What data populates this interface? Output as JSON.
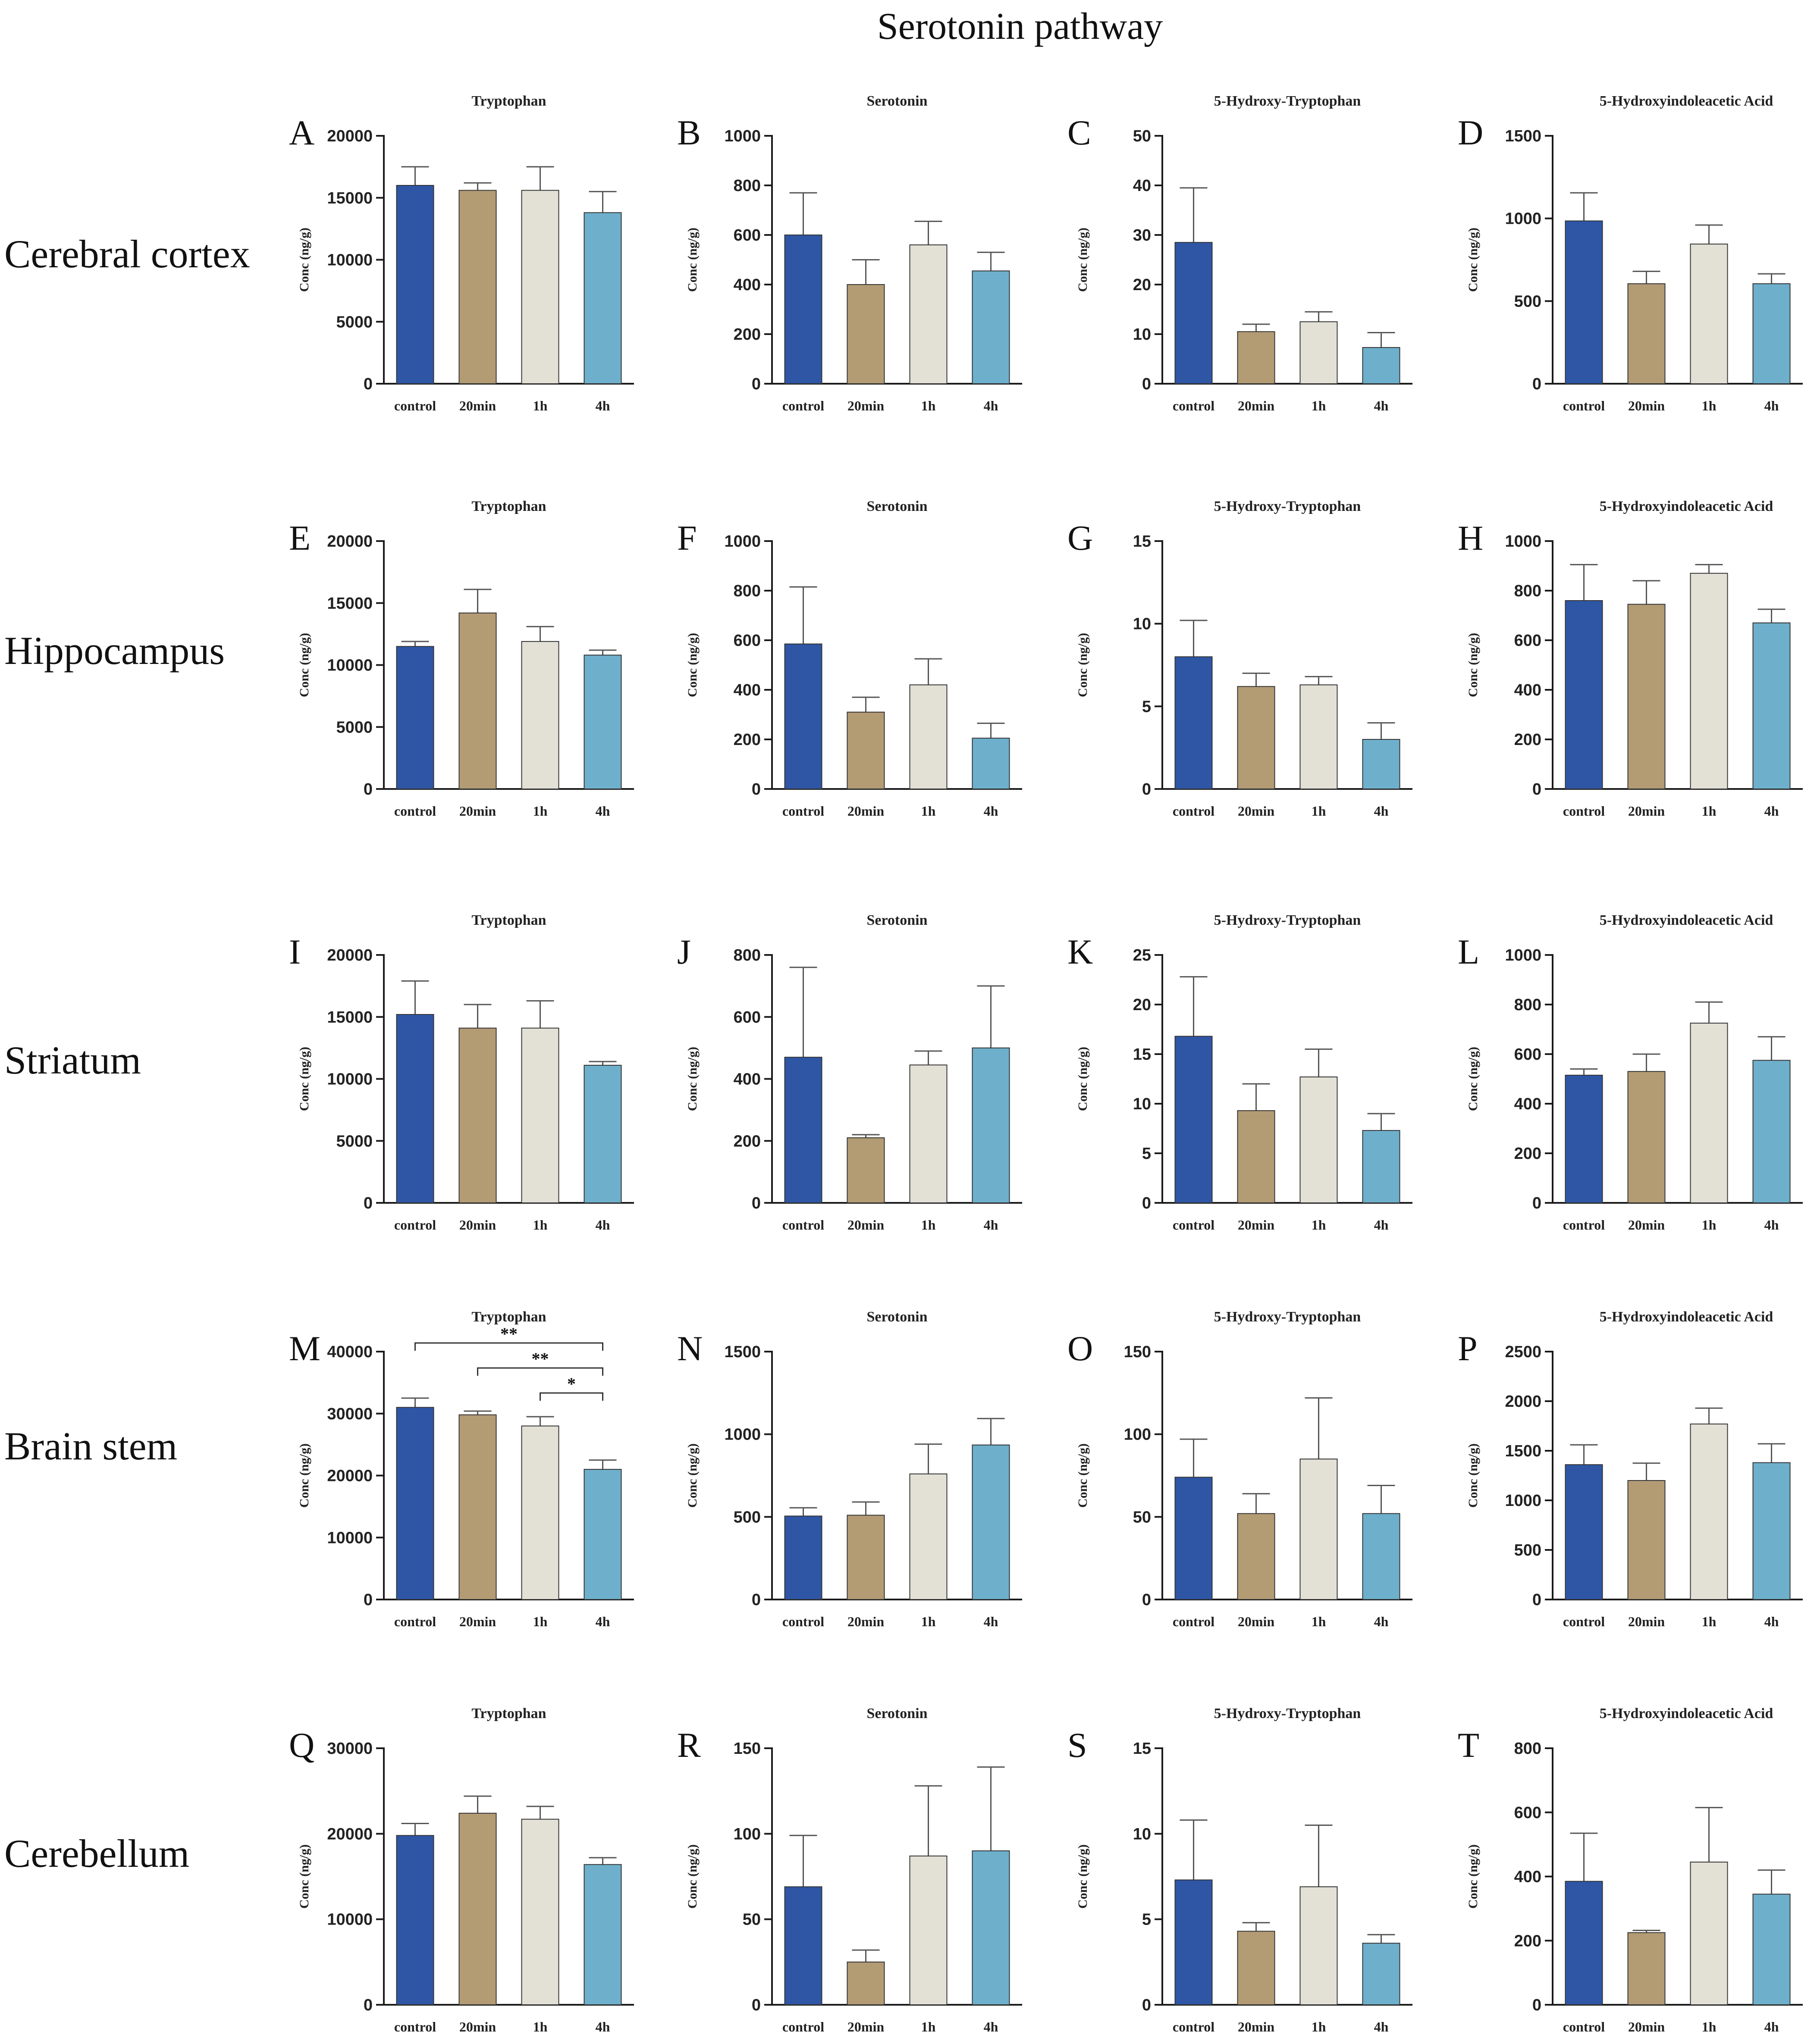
{
  "title": "Serotonin pathway",
  "colors": {
    "bars": [
      "#2e56a5",
      "#b39b74",
      "#e3e0d6",
      "#6eb0cc"
    ],
    "axis": "#1a1a1a",
    "error": "#555555"
  },
  "rows": [
    {
      "label": "Cerebral cortex"
    },
    {
      "label": "Hippocampus"
    },
    {
      "label": "Striatum"
    },
    {
      "label": "Brain stem"
    },
    {
      "label": "Cerebellum"
    }
  ],
  "chart_data": [
    {
      "type": "bar",
      "panel": "A",
      "region": "Cerebral cortex",
      "title": "Tryptophan",
      "ylabel": "Conc (ng/g)",
      "categories": [
        "control",
        "20min",
        "1h",
        "4h"
      ],
      "values": [
        16000,
        15600,
        15600,
        13800
      ],
      "errors": [
        1500,
        600,
        1900,
        1700
      ],
      "ylim": [
        0,
        20000
      ],
      "yticks": [
        0,
        5000,
        10000,
        15000,
        20000
      ]
    },
    {
      "type": "bar",
      "panel": "B",
      "region": "Cerebral cortex",
      "title": "Serotonin",
      "ylabel": "Conc (ng/g)",
      "categories": [
        "control",
        "20min",
        "1h",
        "4h"
      ],
      "values": [
        600,
        400,
        560,
        455
      ],
      "errors": [
        170,
        100,
        95,
        75
      ],
      "ylim": [
        0,
        1000
      ],
      "yticks": [
        0,
        200,
        400,
        600,
        800,
        1000
      ]
    },
    {
      "type": "bar",
      "panel": "C",
      "region": "Cerebral cortex",
      "title": "5-Hydroxy-Tryptophan",
      "ylabel": "Conc (ng/g)",
      "categories": [
        "control",
        "20min",
        "1h",
        "4h"
      ],
      "values": [
        28.5,
        10.5,
        12.5,
        7.3
      ],
      "errors": [
        11,
        1.5,
        2,
        3
      ],
      "ylim": [
        0,
        50
      ],
      "yticks": [
        0,
        10,
        20,
        30,
        40,
        50
      ]
    },
    {
      "type": "bar",
      "panel": "D",
      "region": "Cerebral cortex",
      "title": "5-Hydroxyindoleacetic Acid",
      "ylabel": "Conc (ng/g)",
      "categories": [
        "control",
        "20min",
        "1h",
        "4h"
      ],
      "values": [
        985,
        605,
        845,
        605
      ],
      "errors": [
        170,
        75,
        115,
        60
      ],
      "ylim": [
        0,
        1500
      ],
      "yticks": [
        0,
        500,
        1000,
        1500
      ]
    },
    {
      "type": "bar",
      "panel": "E",
      "region": "Hippocampus",
      "title": "Tryptophan",
      "ylabel": "Conc (ng/g)",
      "categories": [
        "control",
        "20min",
        "1h",
        "4h"
      ],
      "values": [
        11500,
        14200,
        11900,
        10800
      ],
      "errors": [
        400,
        1900,
        1200,
        400
      ],
      "ylim": [
        0,
        20000
      ],
      "yticks": [
        0,
        5000,
        10000,
        15000,
        20000
      ]
    },
    {
      "type": "bar",
      "panel": "F",
      "region": "Hippocampus",
      "title": "Serotonin",
      "ylabel": "Conc (ng/g)",
      "categories": [
        "control",
        "20min",
        "1h",
        "4h"
      ],
      "values": [
        585,
        310,
        420,
        205
      ],
      "errors": [
        230,
        60,
        105,
        60
      ],
      "ylim": [
        0,
        1000
      ],
      "yticks": [
        0,
        200,
        400,
        600,
        800,
        1000
      ]
    },
    {
      "type": "bar",
      "panel": "G",
      "region": "Hippocampus",
      "title": "5-Hydroxy-Tryptophan",
      "ylabel": "Conc (ng/g)",
      "categories": [
        "control",
        "20min",
        "1h",
        "4h"
      ],
      "values": [
        8.0,
        6.2,
        6.3,
        3.0
      ],
      "errors": [
        2.2,
        0.8,
        0.5,
        1.0
      ],
      "ylim": [
        0,
        15
      ],
      "yticks": [
        0,
        5,
        10,
        15
      ]
    },
    {
      "type": "bar",
      "panel": "H",
      "region": "Hippocampus",
      "title": "5-Hydroxyindoleacetic Acid",
      "ylabel": "Conc (ng/g)",
      "categories": [
        "control",
        "20min",
        "1h",
        "4h"
      ],
      "values": [
        760,
        745,
        870,
        670
      ],
      "errors": [
        145,
        95,
        35,
        55
      ],
      "ylim": [
        0,
        1000
      ],
      "yticks": [
        0,
        200,
        400,
        600,
        800,
        1000
      ]
    },
    {
      "type": "bar",
      "panel": "I",
      "region": "Striatum",
      "title": "Tryptophan",
      "ylabel": "Conc (ng/g)",
      "categories": [
        "control",
        "20min",
        "1h",
        "4h"
      ],
      "values": [
        15200,
        14100,
        14100,
        11100
      ],
      "errors": [
        2700,
        1900,
        2200,
        300
      ],
      "ylim": [
        0,
        20000
      ],
      "yticks": [
        0,
        5000,
        10000,
        15000,
        20000
      ]
    },
    {
      "type": "bar",
      "panel": "J",
      "region": "Striatum",
      "title": "Serotonin",
      "ylabel": "Conc (ng/g)",
      "categories": [
        "control",
        "20min",
        "1h",
        "4h"
      ],
      "values": [
        470,
        210,
        445,
        500
      ],
      "errors": [
        290,
        10,
        45,
        200
      ],
      "ylim": [
        0,
        800
      ],
      "yticks": [
        0,
        200,
        400,
        600,
        800
      ]
    },
    {
      "type": "bar",
      "panel": "K",
      "region": "Striatum",
      "title": "5-Hydroxy-Tryptophan",
      "ylabel": "Conc (ng/g)",
      "categories": [
        "control",
        "20min",
        "1h",
        "4h"
      ],
      "values": [
        16.8,
        9.3,
        12.7,
        7.3
      ],
      "errors": [
        6,
        2.7,
        2.8,
        1.7
      ],
      "ylim": [
        0,
        25
      ],
      "yticks": [
        0,
        5,
        10,
        15,
        20,
        25
      ]
    },
    {
      "type": "bar",
      "panel": "L",
      "region": "Striatum",
      "title": "5-Hydroxyindoleacetic Acid",
      "ylabel": "Conc (ng/g)",
      "categories": [
        "control",
        "20min",
        "1h",
        "4h"
      ],
      "values": [
        515,
        530,
        725,
        575
      ],
      "errors": [
        25,
        70,
        85,
        95
      ],
      "ylim": [
        0,
        1000
      ],
      "yticks": [
        0,
        200,
        400,
        600,
        800,
        1000
      ]
    },
    {
      "type": "bar",
      "panel": "M",
      "region": "Brain stem",
      "title": "Tryptophan",
      "ylabel": "Conc (ng/g)",
      "categories": [
        "control",
        "20min",
        "1h",
        "4h"
      ],
      "values": [
        31000,
        29800,
        28000,
        21000
      ],
      "errors": [
        1500,
        600,
        1500,
        1500
      ],
      "ylim": [
        0,
        40000
      ],
      "yticks": [
        0,
        10000,
        20000,
        30000,
        40000
      ],
      "significance": [
        {
          "from": 0,
          "to": 3,
          "label": "**"
        },
        {
          "from": 1,
          "to": 3,
          "label": "**"
        },
        {
          "from": 2,
          "to": 3,
          "label": "*"
        }
      ]
    },
    {
      "type": "bar",
      "panel": "N",
      "region": "Brain stem",
      "title": "Serotonin",
      "ylabel": "Conc (ng/g)",
      "categories": [
        "control",
        "20min",
        "1h",
        "4h"
      ],
      "values": [
        505,
        510,
        760,
        935
      ],
      "errors": [
        50,
        80,
        180,
        160
      ],
      "ylim": [
        0,
        1500
      ],
      "yticks": [
        0,
        500,
        1000,
        1500
      ]
    },
    {
      "type": "bar",
      "panel": "O",
      "region": "Brain stem",
      "title": "5-Hydroxy-Tryptophan",
      "ylabel": "Conc (ng/g)",
      "categories": [
        "control",
        "20min",
        "1h",
        "4h"
      ],
      "values": [
        74,
        52,
        85,
        52
      ],
      "errors": [
        23,
        12,
        37,
        17
      ],
      "ylim": [
        0,
        150
      ],
      "yticks": [
        0,
        50,
        100,
        150
      ]
    },
    {
      "type": "bar",
      "panel": "P",
      "region": "Brain stem",
      "title": "5-Hydroxyindoleacetic Acid",
      "ylabel": "Conc (ng/g)",
      "categories": [
        "control",
        "20min",
        "1h",
        "4h"
      ],
      "values": [
        1360,
        1200,
        1770,
        1380
      ],
      "errors": [
        200,
        175,
        160,
        190
      ],
      "ylim": [
        0,
        2500
      ],
      "yticks": [
        0,
        500,
        1000,
        1500,
        2000,
        2500
      ]
    },
    {
      "type": "bar",
      "panel": "Q",
      "region": "Cerebellum",
      "title": "Tryptophan",
      "ylabel": "Conc (ng/g)",
      "categories": [
        "control",
        "20min",
        "1h",
        "4h"
      ],
      "values": [
        19800,
        22400,
        21700,
        16400
      ],
      "errors": [
        1400,
        2000,
        1500,
        800
      ],
      "ylim": [
        0,
        30000
      ],
      "yticks": [
        0,
        10000,
        20000,
        30000
      ]
    },
    {
      "type": "bar",
      "panel": "R",
      "region": "Cerebellum",
      "title": "Serotonin",
      "ylabel": "Conc (ng/g)",
      "categories": [
        "control",
        "20min",
        "1h",
        "4h"
      ],
      "values": [
        69,
        25,
        87,
        90
      ],
      "errors": [
        30,
        7,
        41,
        49
      ],
      "ylim": [
        0,
        150
      ],
      "yticks": [
        0,
        50,
        100,
        150
      ]
    },
    {
      "type": "bar",
      "panel": "S",
      "region": "Cerebellum",
      "title": "5-Hydroxy-Tryptophan",
      "ylabel": "Conc (ng/g)",
      "categories": [
        "control",
        "20min",
        "1h",
        "4h"
      ],
      "values": [
        7.3,
        4.3,
        6.9,
        3.6
      ],
      "errors": [
        3.5,
        0.5,
        3.6,
        0.5
      ],
      "ylim": [
        0,
        15
      ],
      "yticks": [
        0,
        5,
        10,
        15
      ]
    },
    {
      "type": "bar",
      "panel": "T",
      "region": "Cerebellum",
      "title": "5-Hydroxyindoleacetic Acid",
      "ylabel": "Conc (ng/g)",
      "categories": [
        "control",
        "20min",
        "1h",
        "4h"
      ],
      "values": [
        385,
        225,
        445,
        345
      ],
      "errors": [
        150,
        7,
        170,
        75
      ],
      "ylim": [
        0,
        800
      ],
      "yticks": [
        0,
        200,
        400,
        600,
        800
      ]
    }
  ]
}
